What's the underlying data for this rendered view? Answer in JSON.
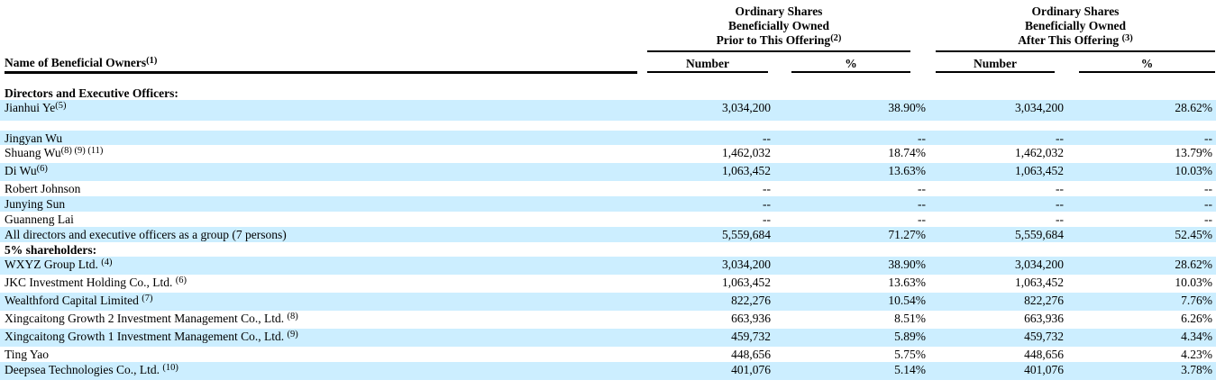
{
  "colors": {
    "row_highlight": "#cceeff",
    "text": "#000000",
    "rule": "#000000",
    "background": "#ffffff"
  },
  "header": {
    "name_column": {
      "label": "Name of Beneficial Owners",
      "sup": "(1)"
    },
    "groups": [
      {
        "line1": "Ordinary Shares",
        "line2": "Beneficially Owned",
        "line3": "Prior to This Offering",
        "sup": "(2)"
      },
      {
        "line1": "Ordinary Shares",
        "line2": "Beneficially Owned",
        "line3": "After This Offering ",
        "sup": "(3)"
      }
    ],
    "columns": [
      "Number",
      "%",
      "Number",
      "%"
    ]
  },
  "table": {
    "rows": [
      {
        "name": "Directors and Executive Officers:"
      },
      {
        "name": "Jianhui Ye",
        "sup": "(5)",
        "num1": "3,034,200",
        "pct1": "38.90%",
        "num2": "3,034,200",
        "pct2": "28.62%"
      },
      {
        "name": ""
      },
      {
        "name": "Jingyan Wu",
        "num1": "--",
        "pct1": "--",
        "num2": "--",
        "pct2": "--"
      },
      {
        "name": "Shuang Wu",
        "sup": "(8) (9) (11)",
        "num1": "1,462,032",
        "pct1": "18.74%",
        "num2": "1,462,032",
        "pct2": "13.79%"
      },
      {
        "name": "Di Wu",
        "sup": "(6)",
        "num1": "1,063,452",
        "pct1": "13.63%",
        "num2": "1,063,452",
        "pct2": "10.03%"
      },
      {
        "name": "Robert Johnson",
        "num1": "--",
        "pct1": "--",
        "num2": "--",
        "pct2": "--"
      },
      {
        "name": "Junying Sun",
        "num1": "--",
        "pct1": "--",
        "num2": "--",
        "pct2": "--"
      },
      {
        "name": "Guanneng Lai",
        "num1": "--",
        "pct1": "--",
        "num2": "--",
        "pct2": "--"
      },
      {
        "name": "All directors and executive officers as a group (7 persons)",
        "num1": "5,559,684",
        "pct1": "71.27%",
        "num2": "5,559,684",
        "pct2": "52.45%"
      },
      {
        "name": "5% shareholders:"
      },
      {
        "name": "WXYZ Group Ltd. ",
        "sup": "(4)",
        "num1": "3,034,200",
        "pct1": "38.90%",
        "num2": "3,034,200",
        "pct2": "28.62%"
      },
      {
        "name": "JKC Investment Holding Co., Ltd. ",
        "sup": "(6)",
        "num1": "1,063,452",
        "pct1": "13.63%",
        "num2": "1,063,452",
        "pct2": "10.03%"
      },
      {
        "name": "Wealthford Capital Limited ",
        "sup": "(7)",
        "num1": "822,276",
        "pct1": "10.54%",
        "num2": "822,276",
        "pct2": "7.76%"
      },
      {
        "name": "Xingcaitong Growth 2 Investment Management Co., Ltd. ",
        "sup": "(8)",
        "num1": "663,936",
        "pct1": "8.51%",
        "num2": "663,936",
        "pct2": "6.26%"
      },
      {
        "name": "Xingcaitong Growth 1 Investment Management Co., Ltd. ",
        "sup": "(9)",
        "num1": "459,732",
        "pct1": "5.89%",
        "num2": "459,732",
        "pct2": "4.34%"
      },
      {
        "name": "Ting Yao",
        "num1": "448,656",
        "pct1": "5.75%",
        "num2": "448,656",
        "pct2": "4.23%"
      },
      {
        "name": "Deepsea Technologies Co., Ltd. ",
        "sup": "(10)",
        "num1": "401,076",
        "pct1": "5.14%",
        "num2": "401,076",
        "pct2": "3.78%"
      }
    ]
  }
}
